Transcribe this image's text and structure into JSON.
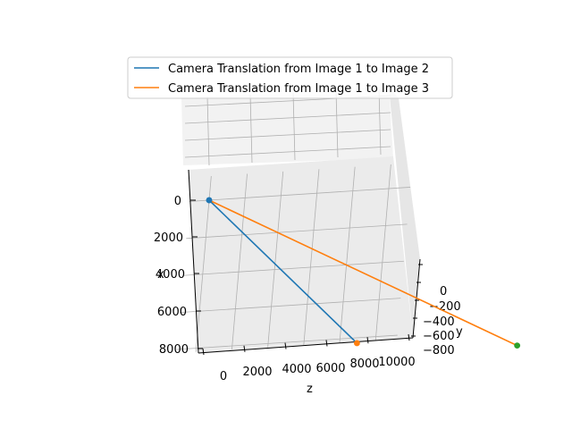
{
  "chart_data": {
    "type": "line",
    "projection": "3d",
    "title": "",
    "xlabel": "x",
    "ylabel": "y",
    "zlabel": "z",
    "x_ticks": [
      "0",
      "2000",
      "4000",
      "6000",
      "8000"
    ],
    "y_ticks": [
      "0",
      "−200",
      "−400",
      "−600",
      "−800"
    ],
    "z_ticks": [
      "0",
      "2000",
      "4000",
      "6000",
      "8000",
      "10000"
    ],
    "grid": true,
    "legend_placement": "top-center",
    "series": [
      {
        "name": "Camera Translation from Image 1 to Image 2",
        "color": "#1f77b4",
        "start": {
          "x": 0,
          "y": 0,
          "z": 0,
          "marker_color": "#1f77b4"
        },
        "end": {
          "x": 7400,
          "y": -200,
          "z": 7100,
          "marker_color": "#ff7f0e"
        }
      },
      {
        "name": "Camera Translation from Image 1 to Image 3",
        "color": "#ff7f0e",
        "start": {
          "x": 0,
          "y": 0,
          "z": 0,
          "marker_color": "#1f77b4"
        },
        "end": {
          "x": 5200,
          "y": -850,
          "z": 10000,
          "marker_color": "#2ca02c"
        }
      }
    ]
  }
}
